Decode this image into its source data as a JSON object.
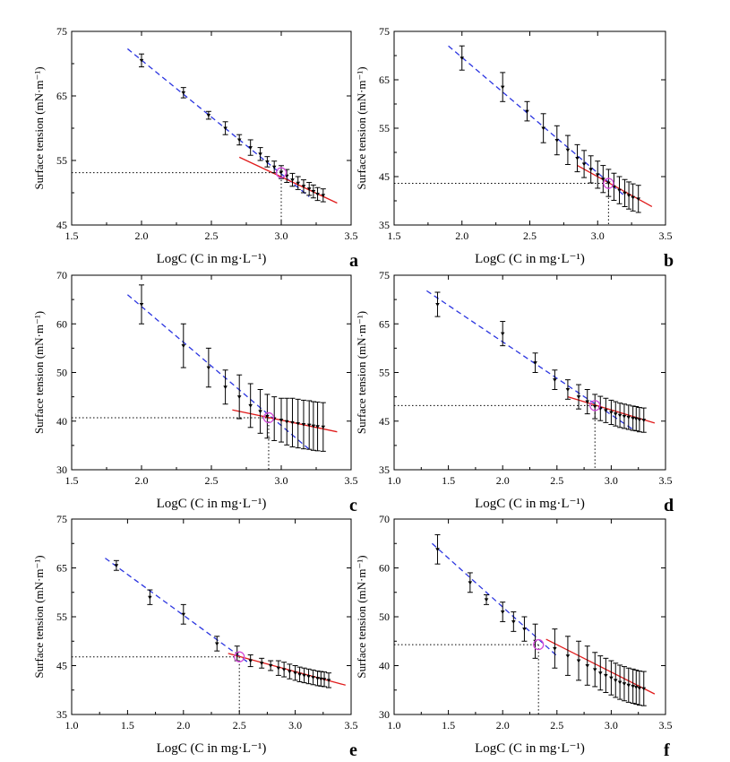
{
  "figure": {
    "ylabel": "Surface tension (mN·m⁻¹)",
    "xlabel": "LogC (C in mg·L⁻¹)"
  },
  "chart_data": [
    {
      "panel": "a",
      "type": "scatter",
      "xlim": [
        1.5,
        3.5
      ],
      "xticks": [
        1.5,
        2.0,
        2.5,
        3.0,
        3.5
      ],
      "xtick_labels": [
        "1.5",
        "2.0",
        "2.5",
        "3.0",
        "3.5"
      ],
      "ylim": [
        45,
        75
      ],
      "yticks": [
        45,
        55,
        65,
        75
      ],
      "x": [
        2.0,
        2.3,
        2.48,
        2.6,
        2.7,
        2.78,
        2.85,
        2.9,
        2.95,
        3.0,
        3.04,
        3.08,
        3.12,
        3.16,
        3.2,
        3.23,
        3.26,
        3.3
      ],
      "y": [
        70.5,
        65.5,
        62.0,
        60.0,
        58.2,
        57.0,
        56.0,
        54.8,
        54.0,
        53.2,
        52.6,
        52.0,
        51.5,
        51.0,
        50.6,
        50.2,
        49.8,
        49.6
      ],
      "err": [
        1.0,
        0.8,
        0.6,
        1.0,
        0.8,
        1.2,
        1.0,
        0.8,
        0.9,
        1.0,
        1.0,
        1.0,
        1.0,
        1.0,
        1.0,
        1.0,
        1.0,
        1.0
      ],
      "blue_fit": [
        [
          1.9,
          72.3
        ],
        [
          3.2,
          49.4
        ]
      ],
      "red_fit": [
        [
          2.7,
          55.5
        ],
        [
          3.4,
          48.4
        ]
      ],
      "cmc_point": [
        3.0,
        53.1
      ]
    },
    {
      "panel": "b",
      "type": "scatter",
      "xlim": [
        1.5,
        3.5
      ],
      "xticks": [
        1.5,
        2.0,
        2.5,
        3.0,
        3.5
      ],
      "xtick_labels": [
        "1.5",
        "2.0",
        "2.5",
        "3.0",
        "3.5"
      ],
      "ylim": [
        35,
        75
      ],
      "yticks": [
        35,
        45,
        55,
        65,
        75
      ],
      "x": [
        2.0,
        2.3,
        2.48,
        2.6,
        2.7,
        2.78,
        2.85,
        2.9,
        2.95,
        3.0,
        3.04,
        3.08,
        3.12,
        3.16,
        3.2,
        3.23,
        3.26,
        3.3
      ],
      "y": [
        69.5,
        63.5,
        58.5,
        55.0,
        52.5,
        50.5,
        48.8,
        47.6,
        46.5,
        45.4,
        44.5,
        43.7,
        42.9,
        42.2,
        41.6,
        41.1,
        40.7,
        40.4
      ],
      "err": [
        2.5,
        3.0,
        2.0,
        3.0,
        3.0,
        3.0,
        2.8,
        2.8,
        2.8,
        2.8,
        2.8,
        2.8,
        2.8,
        2.8,
        2.8,
        2.8,
        2.8,
        2.8
      ],
      "blue_fit": [
        [
          1.9,
          72.0
        ],
        [
          3.2,
          41.0
        ]
      ],
      "red_fit": [
        [
          2.85,
          47.3
        ],
        [
          3.4,
          38.8
        ]
      ],
      "cmc_point": [
        3.08,
        43.6
      ]
    },
    {
      "panel": "c",
      "type": "scatter",
      "xlim": [
        1.5,
        3.5
      ],
      "xticks": [
        1.5,
        2.0,
        2.5,
        3.0,
        3.5
      ],
      "xtick_labels": [
        "1.5",
        "2.0",
        "2.5",
        "3.0",
        "3.5"
      ],
      "ylim": [
        30,
        70
      ],
      "yticks": [
        30,
        40,
        50,
        60,
        70
      ],
      "x": [
        2.0,
        2.3,
        2.48,
        2.6,
        2.7,
        2.78,
        2.85,
        2.9,
        2.95,
        3.0,
        3.04,
        3.08,
        3.12,
        3.16,
        3.2,
        3.23,
        3.26,
        3.3
      ],
      "y": [
        64.0,
        55.5,
        51.0,
        47.0,
        45.0,
        43.2,
        42.0,
        41.0,
        40.5,
        40.2,
        39.9,
        39.7,
        39.5,
        39.3,
        39.2,
        39.0,
        38.9,
        38.8
      ],
      "err": [
        4.0,
        4.5,
        4.0,
        3.5,
        4.5,
        4.5,
        4.5,
        4.5,
        4.5,
        4.5,
        4.8,
        5.0,
        5.0,
        5.0,
        5.0,
        5.0,
        5.0,
        5.0
      ],
      "blue_fit": [
        [
          1.9,
          66.0
        ],
        [
          3.2,
          34.2
        ]
      ],
      "red_fit": [
        [
          2.65,
          42.3
        ],
        [
          3.4,
          37.8
        ]
      ],
      "cmc_point": [
        2.91,
        40.7
      ]
    },
    {
      "panel": "d",
      "type": "scatter",
      "xlim": [
        1.0,
        3.5
      ],
      "xticks": [
        1.0,
        1.5,
        2.0,
        2.5,
        3.0,
        3.5
      ],
      "xtick_labels": [
        "1.0",
        "1.5",
        "2.0",
        "2.5",
        "3.0",
        "3.5"
      ],
      "ylim": [
        35,
        75
      ],
      "yticks": [
        35,
        45,
        55,
        65,
        75
      ],
      "x": [
        1.4,
        2.0,
        2.3,
        2.48,
        2.6,
        2.7,
        2.78,
        2.85,
        2.9,
        2.95,
        3.0,
        3.04,
        3.08,
        3.12,
        3.16,
        3.2,
        3.23,
        3.26,
        3.3
      ],
      "y": [
        69.0,
        63.0,
        57.0,
        53.5,
        51.5,
        50.0,
        49.0,
        48.0,
        47.6,
        47.2,
        46.8,
        46.5,
        46.2,
        46.0,
        45.8,
        45.6,
        45.5,
        45.3,
        45.2
      ],
      "err": [
        2.5,
        2.5,
        2.0,
        2.0,
        2.0,
        2.5,
        2.5,
        2.5,
        2.5,
        2.5,
        2.5,
        2.5,
        2.5,
        2.5,
        2.5,
        2.5,
        2.5,
        2.5,
        2.5
      ],
      "blue_fit": [
        [
          1.3,
          71.8
        ],
        [
          3.2,
          43.3
        ]
      ],
      "red_fit": [
        [
          2.6,
          50.0
        ],
        [
          3.4,
          44.6
        ]
      ],
      "cmc_point": [
        2.85,
        48.2
      ]
    },
    {
      "panel": "e",
      "type": "scatter",
      "xlim": [
        1.0,
        3.5
      ],
      "xticks": [
        1.0,
        1.5,
        2.0,
        2.5,
        3.0,
        3.5
      ],
      "xtick_labels": [
        "1.0",
        "1.5",
        "2.0",
        "2.5",
        "3.0",
        "3.5"
      ],
      "ylim": [
        35,
        75
      ],
      "yticks": [
        35,
        45,
        55,
        65,
        75
      ],
      "x": [
        1.4,
        1.7,
        2.0,
        2.3,
        2.48,
        2.6,
        2.7,
        2.78,
        2.85,
        2.9,
        2.95,
        3.0,
        3.04,
        3.08,
        3.12,
        3.16,
        3.2,
        3.23,
        3.26,
        3.3
      ],
      "y": [
        65.5,
        59.0,
        55.5,
        49.5,
        47.5,
        46.0,
        45.5,
        45.0,
        44.5,
        44.2,
        43.8,
        43.5,
        43.2,
        43.0,
        42.8,
        42.6,
        42.4,
        42.3,
        42.2,
        42.0
      ],
      "err": [
        1.0,
        1.5,
        2.0,
        1.5,
        1.5,
        1.2,
        1.0,
        1.0,
        1.5,
        1.5,
        1.5,
        1.5,
        1.5,
        1.5,
        1.5,
        1.5,
        1.5,
        1.5,
        1.5,
        1.5
      ],
      "blue_fit": [
        [
          1.3,
          67.0
        ],
        [
          2.6,
          45.3
        ]
      ],
      "red_fit": [
        [
          2.4,
          47.5
        ],
        [
          3.45,
          41.0
        ]
      ],
      "cmc_point": [
        2.5,
        46.8
      ]
    },
    {
      "panel": "f",
      "type": "scatter",
      "xlim": [
        1.0,
        3.5
      ],
      "xticks": [
        1.0,
        1.5,
        2.0,
        2.5,
        3.0,
        3.5
      ],
      "xtick_labels": [
        "1.0",
        "1.5",
        "2.0",
        "2.5",
        "3.0",
        "3.5"
      ],
      "ylim": [
        30,
        70
      ],
      "yticks": [
        30,
        40,
        50,
        60,
        70
      ],
      "x": [
        1.4,
        1.7,
        1.85,
        2.0,
        2.1,
        2.2,
        2.3,
        2.48,
        2.6,
        2.7,
        2.78,
        2.85,
        2.9,
        2.95,
        3.0,
        3.04,
        3.08,
        3.12,
        3.16,
        3.2,
        3.23,
        3.26,
        3.3
      ],
      "y": [
        63.8,
        57.0,
        53.5,
        51.0,
        49.0,
        47.5,
        45.0,
        43.5,
        42.0,
        41.0,
        40.0,
        39.2,
        38.5,
        38.0,
        37.5,
        37.0,
        36.6,
        36.3,
        36.0,
        35.8,
        35.6,
        35.4,
        35.3
      ],
      "err": [
        3.0,
        2.0,
        1.0,
        2.0,
        2.0,
        2.5,
        3.5,
        4.0,
        4.0,
        4.0,
        4.0,
        3.5,
        3.5,
        3.5,
        3.5,
        3.5,
        3.5,
        3.5,
        3.5,
        3.5,
        3.5,
        3.5,
        3.5
      ],
      "blue_fit": [
        [
          1.35,
          65.0
        ],
        [
          2.5,
          42.0
        ]
      ],
      "red_fit": [
        [
          2.4,
          45.4
        ],
        [
          3.4,
          34.2
        ]
      ],
      "cmc_point": [
        2.33,
        44.3
      ]
    }
  ],
  "style": {
    "marker_color": "#000000",
    "blue_fit_color": "#2b35e0",
    "red_fit_color": "#e01b1b",
    "cmc_circle_color": "#d24ad8",
    "guide_color": "#000000"
  }
}
